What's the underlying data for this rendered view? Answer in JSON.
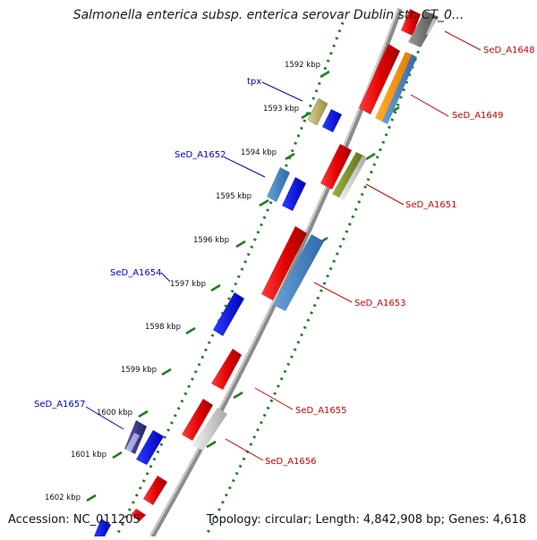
{
  "title": "Salmonella enterica subsp. enterica serovar Dublin str. CT_0...",
  "accession": "Accession: NC_011205",
  "topology": "Topology: circular; Length: 4,842,908 bp; Genes: 4,618",
  "colors": {
    "forward_label": "#cc0000",
    "reverse_label": "#0000cc",
    "tick": "#1e7d1e",
    "backbone": "#8c8c8c"
  },
  "kbp_ticks": [
    "1592 kbp",
    "1593 kbp",
    "1594 kbp",
    "1595 kbp",
    "1596 kbp",
    "1597 kbp",
    "1598 kbp",
    "1599 kbp",
    "1600 kbp",
    "1601 kbp",
    "1602 kbp"
  ],
  "gene_labels": {
    "tpx": "tpx",
    "a1652": "SeD_A1652",
    "a1654": "SeD_A1654",
    "a1657": "SeD_A1657",
    "a1648": "SeD_A1648",
    "a1649": "SeD_A1649",
    "a1651": "SeD_A1651",
    "a1653": "SeD_A1653",
    "a1655": "SeD_A1655",
    "a1656": "SeD_A1656"
  }
}
